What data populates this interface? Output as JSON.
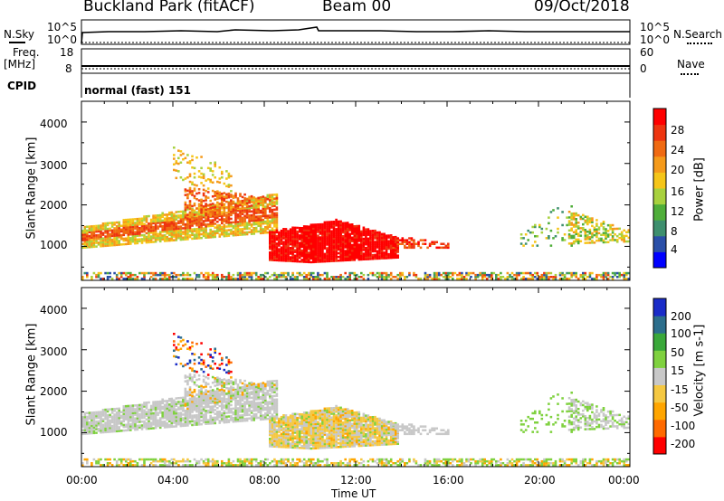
{
  "header": {
    "station": "Buckland Park (fitACF)",
    "beam": "Beam 00",
    "date": "09/Oct/2018"
  },
  "noise_panel": {
    "left_label": "N.Sky",
    "right_label": "N.Search",
    "left_ticks": [
      "10^5",
      "10^0"
    ],
    "right_ticks": [
      "10^5",
      "10^0"
    ]
  },
  "freq_panel": {
    "left_label_1": "Freq.",
    "left_label_2": "[MHz]",
    "right_label": "Nave",
    "left_ticks": [
      "18",
      "8"
    ],
    "right_ticks": [
      "60",
      "0"
    ]
  },
  "cpid_panel": {
    "label": "CPID",
    "program": "normal (fast) 151"
  },
  "xaxis": {
    "label": "Time UT",
    "ticks": [
      "00:00",
      "04:00",
      "08:00",
      "12:00",
      "16:00",
      "20:00",
      "00:00"
    ]
  },
  "colors": {
    "power": [
      "#0000ff",
      "#2a4fa8",
      "#3e8f6e",
      "#4fae3a",
      "#a8d13e",
      "#f5c518",
      "#f59a1a",
      "#f06a12",
      "#ee3510",
      "#ff0000"
    ],
    "velocity": [
      "#ff0000",
      "#ff6a00",
      "#ffa500",
      "#f5c842",
      "#c8c8c8",
      "#7fd13f",
      "#3aa83a",
      "#2c6e8c",
      "#1a2cc8"
    ]
  },
  "chart_data": [
    {
      "type": "heatmap",
      "ylabel": "Slant Range [km]",
      "xlabel": "",
      "ylim": [
        180,
        4500
      ],
      "yticks": [
        "1000",
        "2000",
        "3000",
        "4000"
      ],
      "colorbar": {
        "label": "Power [dB]",
        "ticks": [
          "4",
          "8",
          "12",
          "16",
          "20",
          "24",
          "28"
        ],
        "range": [
          0,
          30
        ]
      }
    },
    {
      "type": "heatmap",
      "ylabel": "Slant Range [km]",
      "xlabel": "Time UT",
      "ylim": [
        180,
        4500
      ],
      "yticks": [
        "1000",
        "2000",
        "3000",
        "4000"
      ],
      "colorbar": {
        "label": "Velocity [m s-1]",
        "ticks": [
          "200",
          "100",
          "50",
          "15",
          "-15",
          "-50",
          "-100",
          "-200"
        ],
        "range": [
          -200,
          200
        ]
      }
    }
  ]
}
